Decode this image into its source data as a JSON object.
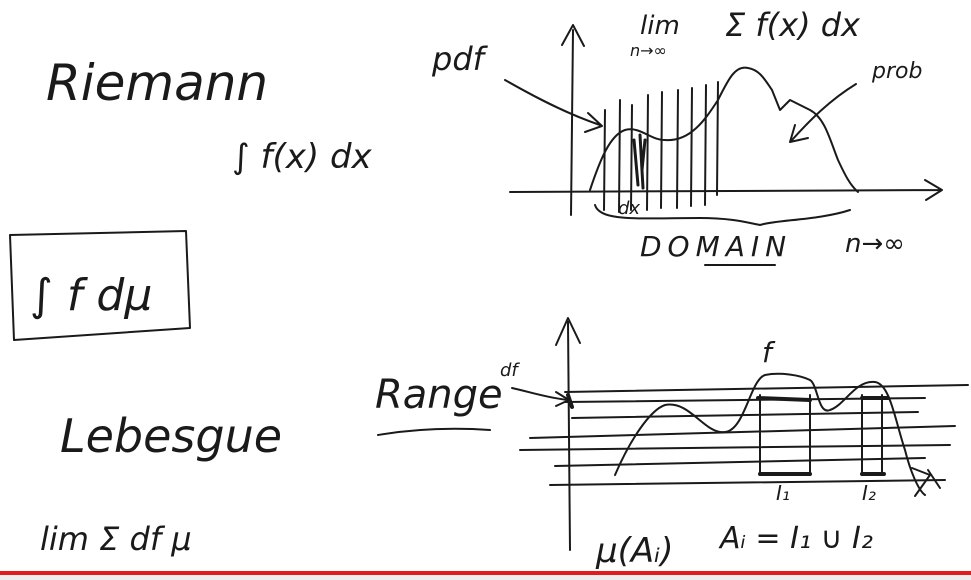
{
  "board": {
    "riemann_title": "Riemann",
    "riemann_integral": "∫ f(x) dx",
    "lebesgue_integral": "∫ f dμ",
    "lebesgue_title": "Lebesgue",
    "lebesgue_sum": "lim Σ df μ",
    "top_limit": "lim",
    "top_limit_sub": "n→∞",
    "top_sum": "Σ f(x) dx",
    "pdf_label": "pdf",
    "prob_label": "prob",
    "dx_label": "dx",
    "domain_label": "DOMAIN",
    "domain_limit": "n→∞",
    "range_label": "Range",
    "df_label": "df",
    "f_label": "f",
    "i1_label": "I₁",
    "i2_label": "I₂",
    "mu_label": "μ(Aᵢ)",
    "union_label": "Aᵢ = I₁ ∪ I₂"
  },
  "video": {
    "progress": 1.0,
    "progress_color": "#e21b1b"
  }
}
